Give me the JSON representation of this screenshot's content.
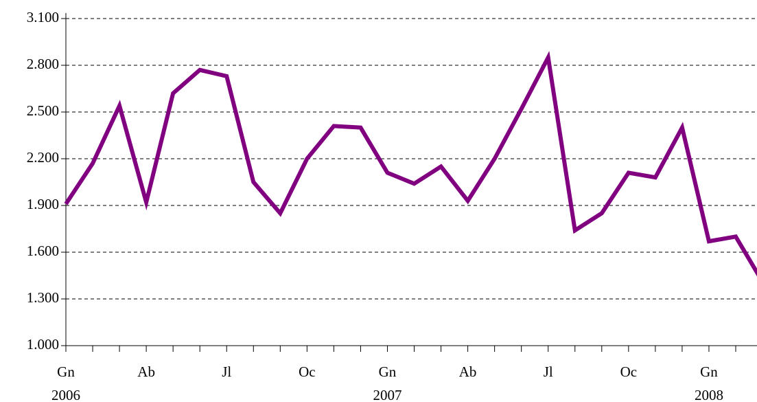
{
  "chart_data": {
    "type": "line",
    "categories": [
      "Gn",
      null,
      null,
      "Ab",
      null,
      null,
      "Jl",
      null,
      null,
      "Oc",
      null,
      null,
      "Gn",
      null,
      null,
      "Ab",
      null,
      null,
      "Jl",
      null,
      null,
      "Oc",
      null,
      null,
      "Gn",
      null,
      null
    ],
    "years": [
      "2006",
      "2007",
      "2008"
    ],
    "series": [
      {
        "color": "#800080",
        "values": [
          1910,
          2170,
          2540,
          1920,
          2620,
          2770,
          2730,
          2050,
          1850,
          2200,
          2410,
          2400,
          2110,
          2040,
          2150,
          1930,
          2200,
          2520,
          2850,
          1740,
          1850,
          2110,
          2080,
          2400,
          1670,
          1700,
          1410
        ]
      }
    ],
    "ylim": [
      1000,
      3100
    ],
    "yticks": [
      {
        "value": 1000,
        "label": "1.000"
      },
      {
        "value": 1300,
        "label": "1.300"
      },
      {
        "value": 1600,
        "label": "1.600"
      },
      {
        "value": 1900,
        "label": "1.900"
      },
      {
        "value": 2200,
        "label": "2.200"
      },
      {
        "value": 2500,
        "label": "2.500"
      },
      {
        "value": 2800,
        "label": "2.800"
      },
      {
        "value": 3100,
        "label": "3.100"
      }
    ],
    "grid": true
  }
}
